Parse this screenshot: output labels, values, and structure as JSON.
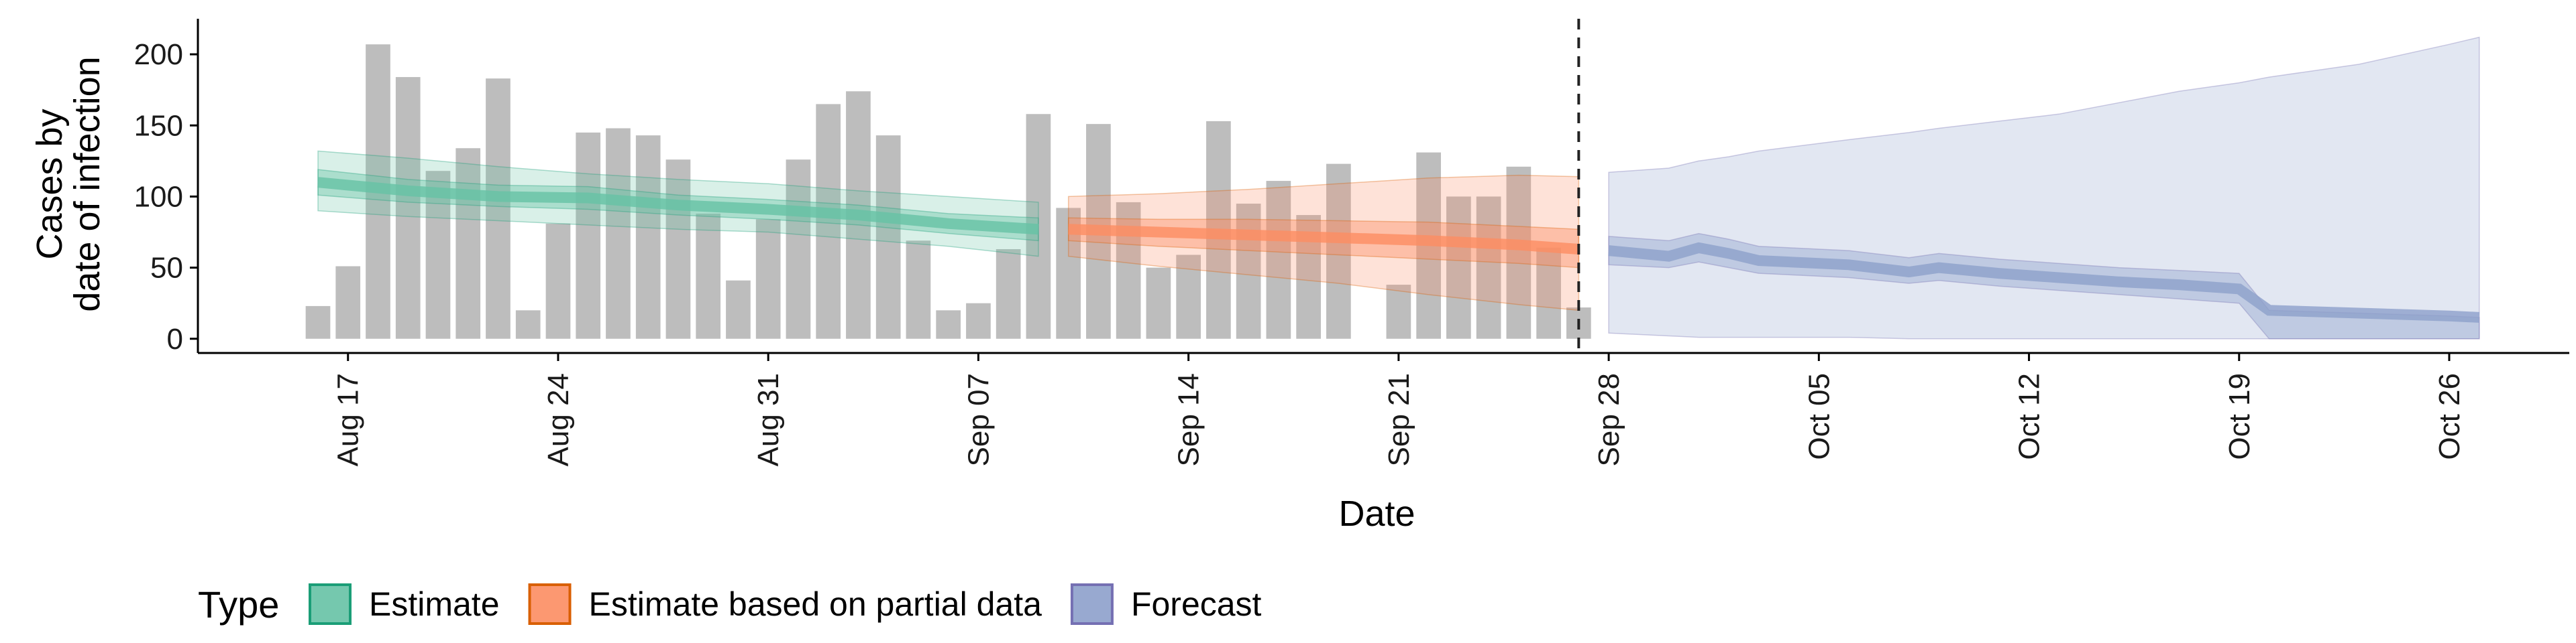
{
  "chart_data": {
    "type": "area",
    "xlabel": "Date",
    "ylabel_lines": [
      "Cases by",
      "date of infection"
    ],
    "ylim": [
      -10,
      225
    ],
    "xlim": [
      "2020-08-12",
      "2020-10-30"
    ],
    "y_ticks": [
      0,
      50,
      100,
      150,
      200
    ],
    "x_ticks": [
      {
        "date": "2020-08-17",
        "label": "Aug 17"
      },
      {
        "date": "2020-08-24",
        "label": "Aug 24"
      },
      {
        "date": "2020-08-31",
        "label": "Aug 31"
      },
      {
        "date": "2020-09-07",
        "label": "Sep 07"
      },
      {
        "date": "2020-09-14",
        "label": "Sep 14"
      },
      {
        "date": "2020-09-21",
        "label": "Sep 21"
      },
      {
        "date": "2020-09-28",
        "label": "Sep 28"
      },
      {
        "date": "2020-10-05",
        "label": "Oct 05"
      },
      {
        "date": "2020-10-12",
        "label": "Oct 12"
      },
      {
        "date": "2020-10-19",
        "label": "Oct 19"
      },
      {
        "date": "2020-10-26",
        "label": "Oct 26"
      }
    ],
    "forecast_start_line": "2020-09-27",
    "bars": {
      "color": "#bdbdbd",
      "dates": [
        "2020-08-16",
        "2020-08-17",
        "2020-08-18",
        "2020-08-19",
        "2020-08-20",
        "2020-08-21",
        "2020-08-22",
        "2020-08-23",
        "2020-08-24",
        "2020-08-25",
        "2020-08-26",
        "2020-08-27",
        "2020-08-28",
        "2020-08-29",
        "2020-08-30",
        "2020-08-31",
        "2020-09-01",
        "2020-09-02",
        "2020-09-03",
        "2020-09-04",
        "2020-09-05",
        "2020-09-06",
        "2020-09-07",
        "2020-09-08",
        "2020-09-09",
        "2020-09-10",
        "2020-09-11",
        "2020-09-12",
        "2020-09-13",
        "2020-09-14",
        "2020-09-15",
        "2020-09-16",
        "2020-09-17",
        "2020-09-18",
        "2020-09-19",
        "2020-09-20",
        "2020-09-21",
        "2020-09-22",
        "2020-09-23",
        "2020-09-24",
        "2020-09-25",
        "2020-09-26",
        "2020-09-27"
      ],
      "values": [
        23,
        51,
        207,
        184,
        118,
        134,
        183,
        20,
        81,
        145,
        148,
        143,
        126,
        88,
        41,
        84,
        126,
        165,
        174,
        143,
        69,
        20,
        25,
        63,
        158,
        92,
        151,
        96,
        50,
        59,
        153,
        95,
        111,
        87,
        123,
        0,
        38,
        131,
        100,
        100,
        121,
        64,
        22
      ]
    },
    "series": [
      {
        "name": "Estimate",
        "color": "#66c2a5",
        "edge_color": "#1b9e77",
        "dates": [
          "2020-08-16",
          "2020-08-19",
          "2020-08-22",
          "2020-08-25",
          "2020-08-28",
          "2020-08-31",
          "2020-09-03",
          "2020-09-06",
          "2020-09-09"
        ],
        "median": [
          110,
          104,
          100,
          99,
          94,
          91,
          87,
          81,
          77
        ],
        "lower_inner": [
          101,
          96,
          93,
          91,
          87,
          84,
          80,
          74,
          69
        ],
        "upper_inner": [
          119,
          112,
          108,
          107,
          101,
          98,
          94,
          88,
          85
        ],
        "lower_outer": [
          90,
          86,
          83,
          80,
          77,
          75,
          70,
          65,
          58
        ],
        "upper_outer": [
          132,
          127,
          121,
          116,
          112,
          109,
          104,
          100,
          96
        ]
      },
      {
        "name": "Estimate based on partial data",
        "color": "#fc8d62",
        "edge_color": "#d95f02",
        "dates": [
          "2020-09-10",
          "2020-09-13",
          "2020-09-16",
          "2020-09-19",
          "2020-09-22",
          "2020-09-25",
          "2020-09-27"
        ],
        "median": [
          77,
          75,
          73,
          71,
          69,
          66,
          63
        ],
        "lower_inner": [
          69,
          65,
          62,
          59,
          56,
          53,
          50
        ],
        "upper_inner": [
          85,
          84,
          84,
          83,
          82,
          79,
          77
        ],
        "lower_outer": [
          58,
          51,
          45,
          39,
          31,
          24,
          20
        ],
        "upper_outer": [
          100,
          102,
          105,
          109,
          113,
          115,
          114
        ]
      },
      {
        "name": "Forecast",
        "color": "#8da0cb",
        "edge_color": "#7570b3",
        "dates": [
          "2020-09-28",
          "2020-09-30",
          "2020-10-01",
          "2020-10-02",
          "2020-10-03",
          "2020-10-06",
          "2020-10-08",
          "2020-10-09",
          "2020-10-11",
          "2020-10-13",
          "2020-10-15",
          "2020-10-17",
          "2020-10-19",
          "2020-10-20",
          "2020-10-23",
          "2020-10-26",
          "2020-10-27"
        ],
        "median": [
          62,
          58,
          64,
          60,
          55,
          52,
          47,
          50,
          46,
          43,
          40,
          38,
          35,
          20,
          18,
          16,
          15
        ],
        "lower_inner": [
          52,
          50,
          54,
          50,
          46,
          43,
          39,
          41,
          37,
          34,
          31,
          28,
          25,
          0,
          0,
          0,
          0
        ],
        "upper_inner": [
          72,
          69,
          74,
          70,
          65,
          62,
          57,
          60,
          56,
          53,
          50,
          48,
          46,
          20,
          18,
          16,
          15
        ],
        "lower_outer": [
          4,
          2,
          1,
          1,
          1,
          1,
          0,
          0,
          0,
          0,
          0,
          0,
          0,
          0,
          0,
          0,
          0
        ],
        "upper_outer": [
          117,
          120,
          125,
          128,
          132,
          140,
          145,
          148,
          153,
          158,
          166,
          174,
          180,
          184,
          193,
          207,
          212
        ]
      }
    ],
    "legend": {
      "title": "Type",
      "position": "bottom",
      "entries": [
        "Estimate",
        "Estimate based on partial data",
        "Forecast"
      ]
    }
  }
}
